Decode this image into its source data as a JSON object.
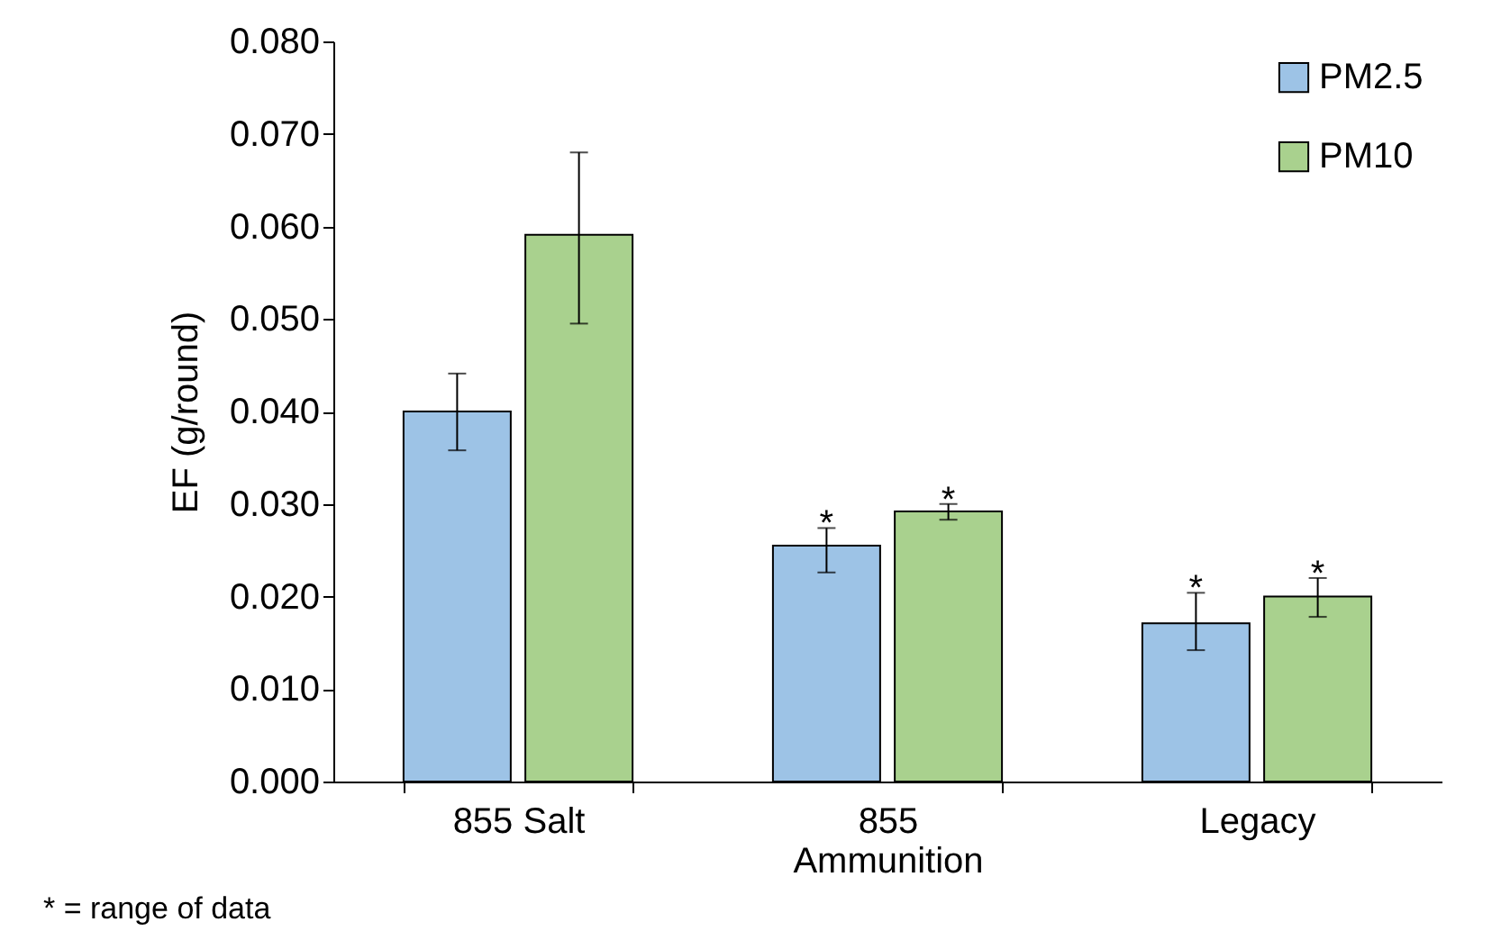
{
  "chart_data": {
    "type": "bar",
    "ylabel": "EF (g/round)",
    "categories": [
      "855 Salt",
      "855\nAmmunition",
      "Legacy"
    ],
    "series": [
      {
        "name": "PM2.5",
        "color": "#9dc3e6",
        "values": [
          0.04,
          0.0255,
          0.0171
        ],
        "value_labels": [
          null,
          "*",
          "*"
        ],
        "errors": [
          [
            0.0358,
            0.0441
          ],
          [
            0.0226,
            0.0274
          ],
          [
            0.0142,
            0.0204
          ]
        ]
      },
      {
        "name": "PM10",
        "color": "#a9d18e",
        "values": [
          0.0591,
          0.0292,
          0.02
        ],
        "value_labels": [
          null,
          "*",
          "*"
        ],
        "errors": [
          [
            0.0495,
            0.068
          ],
          [
            0.0283,
            0.03
          ],
          [
            0.0178,
            0.022
          ]
        ]
      }
    ],
    "ylim": [
      0,
      0.08
    ],
    "yticks": [
      {
        "value": 0,
        "label": "0.000"
      },
      {
        "value": 0.01,
        "label": "0.010"
      },
      {
        "value": 0.02,
        "label": "0.020"
      },
      {
        "value": 0.03,
        "label": "0.030"
      },
      {
        "value": 0.04,
        "label": "0.040"
      },
      {
        "value": 0.05,
        "label": "0.050"
      },
      {
        "value": 0.06,
        "label": "0.060"
      },
      {
        "value": 0.07,
        "label": "0.070"
      },
      {
        "value": 0.08,
        "label": "0.080"
      }
    ],
    "grid": false,
    "legend": "top right",
    "annotations": [
      "* = range of data"
    ]
  }
}
